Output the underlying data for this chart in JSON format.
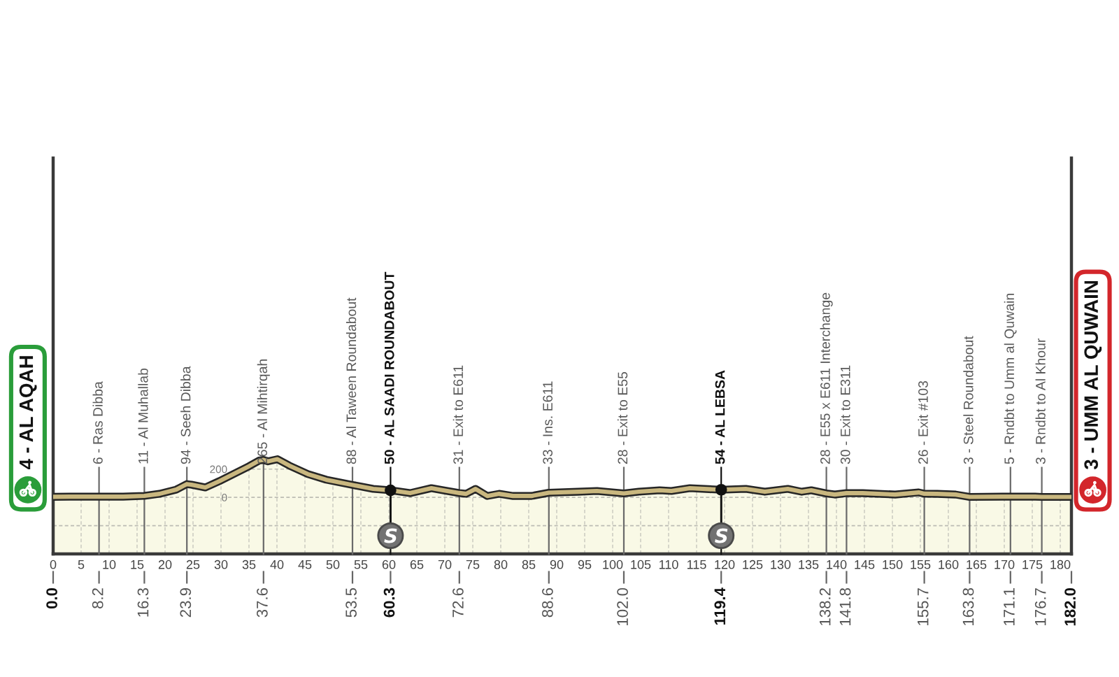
{
  "chart_data": {
    "type": "area",
    "x": [
      0,
      3,
      6.5,
      8.2,
      10,
      12.5,
      16.3,
      19,
      22,
      23.9,
      24.7,
      27.2,
      29.7,
      33,
      35,
      36.8,
      37.6,
      38.4,
      40.1,
      42.2,
      45.5,
      48.8,
      53.5,
      57.2,
      60.3,
      63.8,
      67.6,
      69.7,
      72.6,
      73.8,
      75.5,
      77.6,
      79.7,
      82.2,
      85.5,
      88.6,
      93.8,
      97.2,
      102,
      104.7,
      108.4,
      110.5,
      113.8,
      119.4,
      123.8,
      127.2,
      131.3,
      133.8,
      135.5,
      138.2,
      139.7,
      141.8,
      144.7,
      150.5,
      154.7,
      155.7,
      158,
      161.3,
      163.8,
      169.7,
      171.1,
      175.5,
      176.7,
      182
    ],
    "values": [
      4,
      5,
      5,
      6,
      5,
      5,
      11,
      25,
      55,
      94,
      90,
      70,
      115,
      180,
      220,
      260,
      265,
      255,
      270,
      225,
      165,
      125,
      88,
      60,
      50,
      30,
      65,
      50,
      31,
      25,
      60,
      10,
      25,
      10,
      10,
      33,
      40,
      45,
      28,
      40,
      50,
      45,
      65,
      54,
      60,
      40,
      60,
      40,
      50,
      28,
      20,
      30,
      30,
      20,
      35,
      26,
      25,
      20,
      3,
      5,
      5,
      5,
      3,
      3
    ],
    "color": "#f9f9e6",
    "bands": [
      {
        "axis": "y",
        "from": -400,
        "to": 0,
        "color": "#f9f9e6"
      }
    ],
    "xlim": [
      0,
      182
    ],
    "xticks": [
      0,
      5,
      10,
      15,
      20,
      25,
      30,
      35,
      40,
      45,
      50,
      55,
      60,
      65,
      70,
      75,
      80,
      85,
      90,
      95,
      100,
      105,
      110,
      115,
      120,
      125,
      130,
      135,
      140,
      145,
      150,
      155,
      160,
      165,
      170,
      175,
      180
    ],
    "ylim": [
      -400,
      2400
    ],
    "yticks": [
      {
        "value": -200,
        "label": null
      },
      0,
      200
    ],
    "x2lim": [
      0,
      182
    ],
    "x2ticks": [
      {
        "value": 0,
        "label": "0.0"
      },
      8.2,
      16.3,
      23.9,
      37.6,
      53.5,
      60.3,
      72.6,
      88.6,
      {
        "value": 102,
        "label": "102.0"
      },
      119.4,
      138.2,
      141.8,
      155.7,
      163.8,
      171.1,
      176.7,
      {
        "value": 182,
        "label": "182.0"
      }
    ],
    "grid": true,
    "annotations": [
      {
        "text": "4 - AL AQAH",
        "x": 0,
        "y": 4
      },
      {
        "text": "6 - Ras Dibba",
        "x": 8.2,
        "y": 6
      },
      {
        "text": "11 - Al Muhallab",
        "x": 16.3,
        "y": 11
      },
      {
        "text": "94 - Seeh Dibba",
        "x": 23.9,
        "y": 94
      },
      {
        "text": "265 - Al Mihtirqah",
        "x": 37.6,
        "y": 265
      },
      {
        "text": "88 - Al Taween Roundabout",
        "x": 53.5,
        "y": 88
      },
      {
        "text": "50 - AL SAADI ROUNDABOUT",
        "x": 60.3,
        "y": 50
      },
      {
        "text": "31 - Exit to E611",
        "x": 72.6,
        "y": 31
      },
      {
        "text": "33 - Ins. E611",
        "x": 88.6,
        "y": 33
      },
      {
        "text": "28 - Exit to E55",
        "x": 102.0,
        "y": 28
      },
      {
        "text": "54 - AL LEBSA",
        "x": 119.4,
        "y": 54
      },
      {
        "text": "28 - E55 x E611 Interchange",
        "x": 138.2,
        "y": 28
      },
      {
        "text": "30 - Exit to E311",
        "x": 141.8,
        "y": 30
      },
      {
        "text": "26 - Exit #103",
        "x": 155.7,
        "y": 26
      },
      {
        "text": "3 - Steel Roundabout",
        "x": 163.8,
        "y": 3
      },
      {
        "text": "5 - Rndbt to Umm al Quwain",
        "x": 171.1,
        "y": 5
      },
      {
        "text": "3 - Rndbt to Al Khour",
        "x": 176.7,
        "y": 3
      },
      {
        "text": "3 - UMM AL QUWAIN",
        "x": 182,
        "y": 3
      }
    ]
  }
}
